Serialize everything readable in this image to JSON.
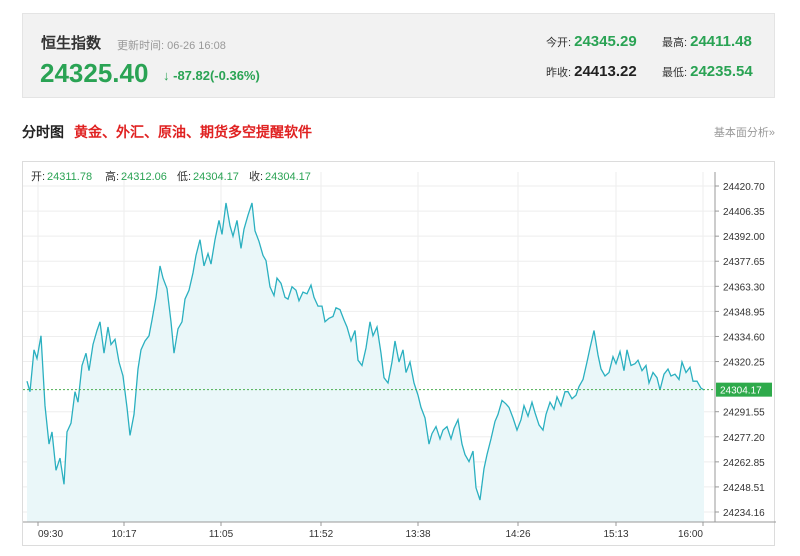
{
  "quote": {
    "name": "恒生指数",
    "update_time": "更新时间: 06-26 16:08",
    "price": "24325.40",
    "change": "↓ -87.82(-0.36%)",
    "today_open_label": "今开:",
    "today_open": "24345.29",
    "high_label": "最高:",
    "high": "24411.48",
    "prev_close_label": "昨收:",
    "prev_close": "24413.22",
    "low_label": "最低:",
    "low": "24235.54"
  },
  "section": {
    "title": "分时图",
    "promo": "黄金、外汇、原油、期货多空提醒软件",
    "link": "基本面分析»"
  },
  "ohlc": {
    "open_label": "开:",
    "open": "24311.78",
    "high_label": "高:",
    "high": "24312.06",
    "low_label": "低:",
    "low": "24304.17",
    "close_label": "收:",
    "close": "24304.17"
  },
  "colors": {
    "line": "#2bb0c0",
    "fill": "#eaf7f9",
    "ref": "#4caf50",
    "ref_label_bg": "#2eaa4b"
  },
  "chart_data": {
    "type": "area",
    "title": "",
    "xlabel": "",
    "ylabel": "",
    "x_ticks": [
      "09:30",
      "10:17",
      "11:05",
      "11:52",
      "13:38",
      "14:26",
      "15:13",
      "16:00"
    ],
    "y_ticks": [
      "24420.70",
      "24406.35",
      "24392.00",
      "24377.65",
      "24363.30",
      "24348.95",
      "24334.60",
      "24320.25",
      "24291.55",
      "24277.20",
      "24262.85",
      "24248.51",
      "24234.16"
    ],
    "ylim": [
      24234.16,
      24420.7
    ],
    "grid": true,
    "reference_line": {
      "value": 24304.17,
      "label": "24304.17"
    },
    "series": [
      {
        "values": [
          [
            0,
            24309
          ],
          [
            3,
            24303
          ],
          [
            7,
            24327
          ],
          [
            10,
            24322
          ],
          [
            14,
            24335
          ],
          [
            18,
            24295
          ],
          [
            22,
            24273
          ],
          [
            25,
            24280
          ],
          [
            29,
            24258
          ],
          [
            33,
            24265
          ],
          [
            37,
            24250
          ],
          [
            40,
            24280
          ],
          [
            44,
            24285
          ],
          [
            48,
            24303
          ],
          [
            51,
            24297
          ],
          [
            55,
            24318
          ],
          [
            59,
            24325
          ],
          [
            62,
            24315
          ],
          [
            66,
            24330
          ],
          [
            70,
            24338
          ],
          [
            73,
            24343
          ],
          [
            77,
            24325
          ],
          [
            81,
            24340
          ],
          [
            84,
            24330
          ],
          [
            88,
            24333
          ],
          [
            92,
            24320
          ],
          [
            96,
            24312
          ],
          [
            100,
            24294
          ],
          [
            103,
            24278
          ],
          [
            107,
            24290
          ],
          [
            111,
            24316
          ],
          [
            114,
            24327
          ],
          [
            118,
            24332
          ],
          [
            122,
            24335
          ],
          [
            125,
            24344
          ],
          [
            129,
            24357
          ],
          [
            133,
            24375
          ],
          [
            136,
            24368
          ],
          [
            140,
            24362
          ],
          [
            144,
            24343
          ],
          [
            147,
            24325
          ],
          [
            151,
            24339
          ],
          [
            155,
            24343
          ],
          [
            158,
            24356
          ],
          [
            162,
            24361
          ],
          [
            166,
            24371
          ],
          [
            169,
            24381
          ],
          [
            173,
            24390
          ],
          [
            177,
            24375
          ],
          [
            181,
            24382
          ],
          [
            184,
            24376
          ],
          [
            188,
            24390
          ],
          [
            192,
            24401
          ],
          [
            195,
            24393
          ],
          [
            199,
            24411
          ],
          [
            203,
            24398
          ],
          [
            206,
            24392
          ],
          [
            210,
            24401
          ],
          [
            214,
            24385
          ],
          [
            217,
            24396
          ],
          [
            221,
            24404
          ],
          [
            225,
            24411
          ],
          [
            228,
            24395
          ],
          [
            232,
            24389
          ],
          [
            236,
            24381
          ],
          [
            239,
            24378
          ],
          [
            243,
            24363
          ],
          [
            247,
            24358
          ],
          [
            250,
            24368
          ],
          [
            254,
            24365
          ],
          [
            258,
            24357
          ],
          [
            261,
            24356
          ],
          [
            265,
            24363
          ],
          [
            269,
            24361
          ],
          [
            272,
            24355
          ],
          [
            276,
            24360
          ],
          [
            280,
            24359
          ],
          [
            284,
            24364
          ],
          [
            287,
            24357
          ],
          [
            291,
            24352
          ],
          [
            295,
            24352
          ],
          [
            298,
            24343
          ],
          [
            302,
            24345
          ],
          [
            306,
            24346
          ],
          [
            309,
            24351
          ],
          [
            313,
            24350
          ],
          [
            317,
            24344
          ],
          [
            320,
            24340
          ],
          [
            324,
            24332
          ],
          [
            328,
            24338
          ],
          [
            331,
            24321
          ],
          [
            335,
            24318
          ],
          [
            339,
            24328
          ],
          [
            343,
            24343
          ],
          [
            346,
            24335
          ],
          [
            350,
            24340
          ],
          [
            354,
            24325
          ],
          [
            357,
            24311
          ],
          [
            361,
            24308
          ],
          [
            365,
            24320
          ],
          [
            368,
            24332
          ],
          [
            372,
            24320
          ],
          [
            376,
            24327
          ],
          [
            379,
            24314
          ],
          [
            383,
            24320
          ],
          [
            387,
            24308
          ],
          [
            391,
            24301
          ],
          [
            394,
            24294
          ],
          [
            398,
            24288
          ],
          [
            402,
            24273
          ],
          [
            405,
            24279
          ],
          [
            409,
            24283
          ],
          [
            413,
            24276
          ],
          [
            416,
            24281
          ],
          [
            420,
            24283
          ],
          [
            424,
            24276
          ],
          [
            427,
            24282
          ],
          [
            431,
            24287
          ],
          [
            435,
            24273
          ],
          [
            438,
            24267
          ],
          [
            442,
            24263
          ],
          [
            446,
            24269
          ],
          [
            449,
            24248
          ],
          [
            453,
            24241
          ],
          [
            457,
            24259
          ],
          [
            460,
            24267
          ],
          [
            464,
            24276
          ],
          [
            468,
            24286
          ],
          [
            471,
            24290
          ],
          [
            475,
            24298
          ],
          [
            479,
            24296
          ],
          [
            482,
            24294
          ],
          [
            486,
            24288
          ],
          [
            490,
            24281
          ],
          [
            494,
            24287
          ],
          [
            497,
            24295
          ],
          [
            501,
            24289
          ],
          [
            505,
            24297
          ],
          [
            508,
            24291
          ],
          [
            512,
            24284
          ],
          [
            516,
            24281
          ],
          [
            519,
            24290
          ],
          [
            523,
            24297
          ],
          [
            527,
            24293
          ],
          [
            530,
            24300
          ],
          [
            534,
            24295
          ],
          [
            538,
            24303
          ],
          [
            541,
            24303
          ],
          [
            545,
            24299
          ],
          [
            549,
            24301
          ],
          [
            552,
            24306
          ],
          [
            556,
            24310
          ],
          [
            560,
            24320
          ],
          [
            563,
            24328
          ],
          [
            567,
            24338
          ],
          [
            571,
            24324
          ],
          [
            574,
            24316
          ],
          [
            578,
            24312
          ],
          [
            582,
            24314
          ],
          [
            586,
            24323
          ],
          [
            589,
            24319
          ],
          [
            593,
            24326
          ],
          [
            597,
            24315
          ],
          [
            600,
            24327
          ],
          [
            604,
            24318
          ],
          [
            608,
            24319
          ],
          [
            611,
            24321
          ],
          [
            615,
            24315
          ],
          [
            619,
            24318
          ],
          [
            622,
            24308
          ],
          [
            626,
            24314
          ],
          [
            630,
            24311
          ],
          [
            633,
            24304
          ],
          [
            637,
            24313
          ],
          [
            641,
            24316
          ],
          [
            644,
            24312
          ],
          [
            648,
            24313
          ],
          [
            652,
            24310
          ],
          [
            655,
            24320
          ],
          [
            659,
            24314
          ],
          [
            663,
            24317
          ],
          [
            666,
            24309
          ],
          [
            670,
            24309
          ],
          [
            674,
            24305
          ],
          [
            677,
            24304
          ]
        ]
      }
    ]
  }
}
